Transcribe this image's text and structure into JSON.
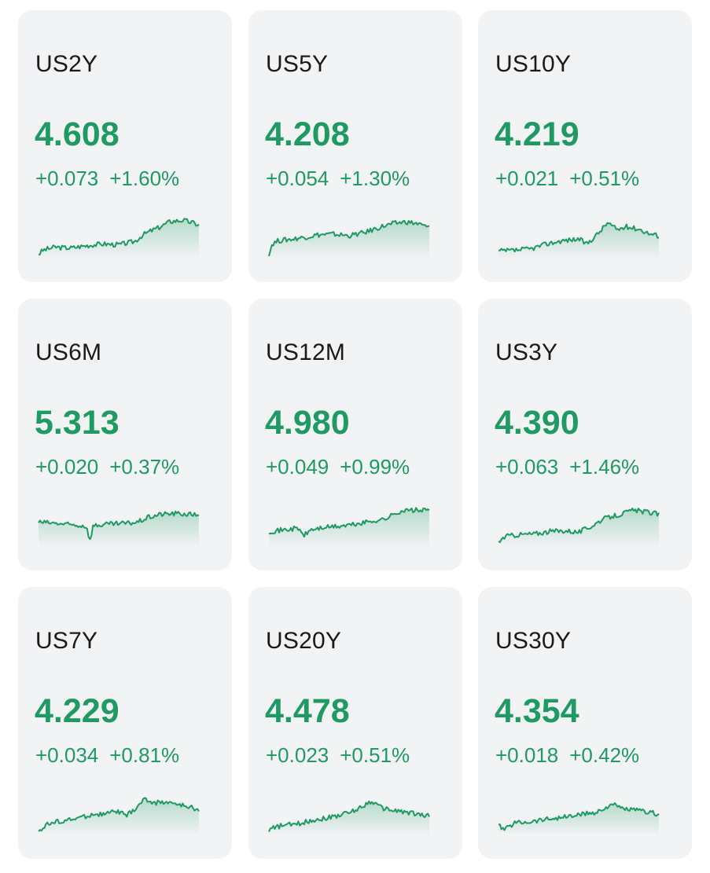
{
  "colors": {
    "positive": "#1e9a62",
    "card_background": "#f2f3f5",
    "symbol_text": "#1a1a1a"
  },
  "cards": [
    {
      "symbol": "US2Y",
      "price": "4.608",
      "change": "+0.073",
      "change_pct": "+1.60%",
      "trend": "positive"
    },
    {
      "symbol": "US5Y",
      "price": "4.208",
      "change": "+0.054",
      "change_pct": "+1.30%",
      "trend": "positive"
    },
    {
      "symbol": "US10Y",
      "price": "4.219",
      "change": "+0.021",
      "change_pct": "+0.51%",
      "trend": "positive"
    },
    {
      "symbol": "US6M",
      "price": "5.313",
      "change": "+0.020",
      "change_pct": "+0.37%",
      "trend": "positive"
    },
    {
      "symbol": "US12M",
      "price": "4.980",
      "change": "+0.049",
      "change_pct": "+0.99%",
      "trend": "positive"
    },
    {
      "symbol": "US3Y",
      "price": "4.390",
      "change": "+0.063",
      "change_pct": "+1.46%",
      "trend": "positive"
    },
    {
      "symbol": "US7Y",
      "price": "4.229",
      "change": "+0.034",
      "change_pct": "+0.81%",
      "trend": "positive"
    },
    {
      "symbol": "US20Y",
      "price": "4.478",
      "change": "+0.023",
      "change_pct": "+0.51%",
      "trend": "positive"
    },
    {
      "symbol": "US30Y",
      "price": "4.354",
      "change": "+0.018",
      "change_pct": "+0.42%",
      "trend": "positive"
    }
  ]
}
